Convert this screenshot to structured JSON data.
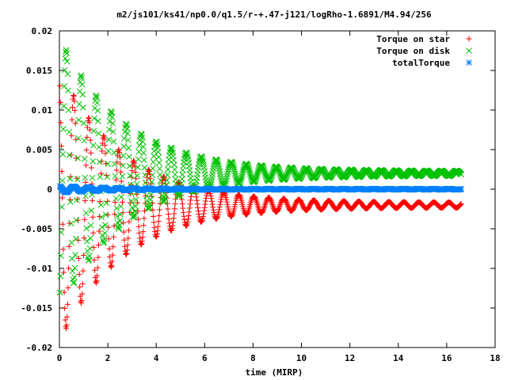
{
  "chart_data": {
    "type": "scatter",
    "title": "m2/js101/ks41/np0.0/q1.5/r-+.47-j121/logRho-1.6891/M4.94/256",
    "xlabel": "time (MIRP)",
    "ylabel": "",
    "xlim": [
      0,
      18
    ],
    "ylim": [
      -0.02,
      0.02
    ],
    "x_ticks": [
      "0",
      "2",
      "4",
      "6",
      "8",
      "10",
      "12",
      "14",
      "16",
      "18"
    ],
    "y_ticks": [
      "-0.02",
      "-0.015",
      "-0.01",
      "-0.005",
      "0",
      "0.005",
      "0.01",
      "0.015",
      "0.02"
    ],
    "x_tick_values": [
      0,
      2,
      4,
      6,
      8,
      10,
      12,
      14,
      16,
      18
    ],
    "y_tick_values": [
      -0.02,
      -0.015,
      -0.01,
      -0.005,
      0,
      0.005,
      0.01,
      0.015,
      0.02
    ],
    "grid": false,
    "legend_position": "top-right",
    "series": [
      {
        "name": "Torque on star",
        "color": "#ff0000",
        "marker": "plus",
        "model": {
          "t_max": 16.6,
          "dt": 0.02,
          "offset": -0.002,
          "amp0": 0.017,
          "decay": 0.38,
          "amp_floor": 0.0003,
          "period": 0.62,
          "phase": 0.3,
          "sign": 1
        }
      },
      {
        "name": "Torque on disk",
        "color": "#00c000",
        "marker": "cross",
        "model": {
          "t_max": 16.6,
          "dt": 0.02,
          "offset": 0.002,
          "amp0": 0.017,
          "decay": 0.38,
          "amp_floor": 0.0003,
          "period": 0.62,
          "phase": 0.3,
          "sign": -1
        }
      },
      {
        "name": "totalTorque",
        "color": "#0080ff",
        "marker": "star",
        "model": {
          "t_max": 16.6,
          "dt": 0.02,
          "offset": 0.0,
          "amp0": 0.0004,
          "decay": 0.5,
          "amp_floor": 5e-05,
          "period": 0.62,
          "phase": 0.3,
          "sign": 1
        }
      }
    ]
  }
}
